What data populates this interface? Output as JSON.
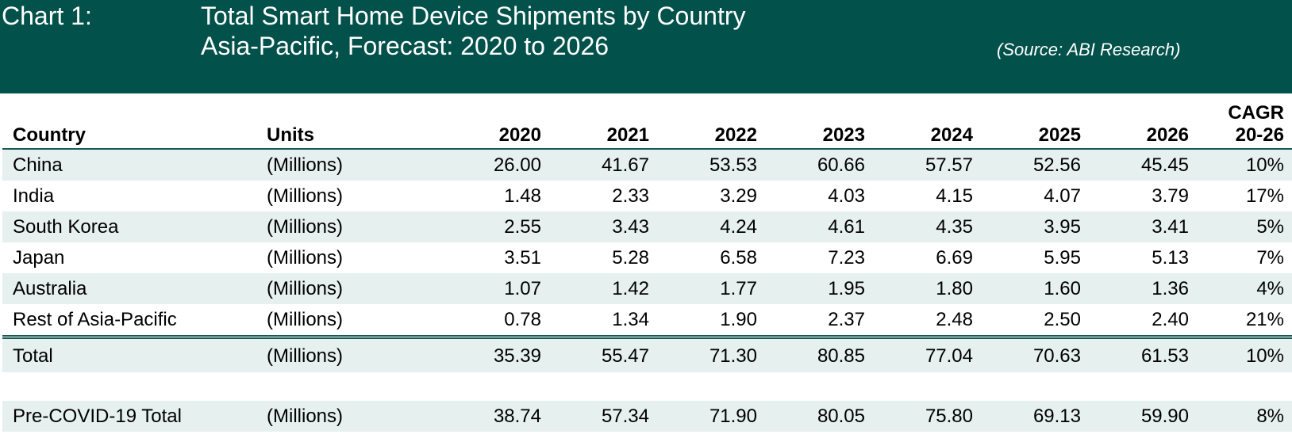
{
  "header": {
    "chart_label": "Chart 1:",
    "title_line1": "Total Smart Home Device Shipments by Country",
    "title_line2": "Asia-Pacific, Forecast: 2020 to 2026",
    "source": "(Source: ABI Research)"
  },
  "colors": {
    "banner": "#02514b",
    "row_shade": "#e6f0ee",
    "rule": "#165a52"
  },
  "table": {
    "columns": [
      "Country",
      "Units",
      "2020",
      "2021",
      "2022",
      "2023",
      "2024",
      "2025",
      "2026",
      "CAGR",
      "20-26"
    ],
    "rows": [
      {
        "country": "China",
        "units": "(Millions)",
        "values": [
          "26.00",
          "41.67",
          "53.53",
          "60.66",
          "57.57",
          "52.56",
          "45.45"
        ],
        "cagr": "10%"
      },
      {
        "country": "India",
        "units": "(Millions)",
        "values": [
          "1.48",
          "2.33",
          "3.29",
          "4.03",
          "4.15",
          "4.07",
          "3.79"
        ],
        "cagr": "17%"
      },
      {
        "country": "South Korea",
        "units": "(Millions)",
        "values": [
          "2.55",
          "3.43",
          "4.24",
          "4.61",
          "4.35",
          "3.95",
          "3.41"
        ],
        "cagr": "5%"
      },
      {
        "country": "Japan",
        "units": "(Millions)",
        "values": [
          "3.51",
          "5.28",
          "6.58",
          "7.23",
          "6.69",
          "5.95",
          "5.13"
        ],
        "cagr": "7%"
      },
      {
        "country": "Australia",
        "units": "(Millions)",
        "values": [
          "1.07",
          "1.42",
          "1.77",
          "1.95",
          "1.80",
          "1.60",
          "1.36"
        ],
        "cagr": "4%"
      },
      {
        "country": "Rest of Asia-Pacific",
        "units": "(Millions)",
        "values": [
          "0.78",
          "1.34",
          "1.90",
          "2.37",
          "2.48",
          "2.50",
          "2.40"
        ],
        "cagr": "21%"
      }
    ],
    "total": {
      "country": "Total",
      "units": "(Millions)",
      "values": [
        "35.39",
        "55.47",
        "71.30",
        "80.85",
        "77.04",
        "70.63",
        "61.53"
      ],
      "cagr": "10%"
    },
    "pre_covid": {
      "country": "Pre-COVID-19 Total",
      "units": "(Millions)",
      "values": [
        "38.74",
        "57.34",
        "71.90",
        "80.05",
        "75.80",
        "69.13",
        "59.90"
      ],
      "cagr": "8%"
    }
  },
  "chart_data": {
    "type": "table",
    "title": "Total Smart Home Device Shipments by Country — Asia-Pacific, Forecast: 2020 to 2026",
    "source": "(Source: ABI Research)",
    "units": "Millions",
    "x": [
      2020,
      2021,
      2022,
      2023,
      2024,
      2025,
      2026
    ],
    "series": [
      {
        "name": "China",
        "values": [
          26.0,
          41.67,
          53.53,
          60.66,
          57.57,
          52.56,
          45.45
        ],
        "cagr_20_26": "10%"
      },
      {
        "name": "India",
        "values": [
          1.48,
          2.33,
          3.29,
          4.03,
          4.15,
          4.07,
          3.79
        ],
        "cagr_20_26": "17%"
      },
      {
        "name": "South Korea",
        "values": [
          2.55,
          3.43,
          4.24,
          4.61,
          4.35,
          3.95,
          3.41
        ],
        "cagr_20_26": "5%"
      },
      {
        "name": "Japan",
        "values": [
          3.51,
          5.28,
          6.58,
          7.23,
          6.69,
          5.95,
          5.13
        ],
        "cagr_20_26": "7%"
      },
      {
        "name": "Australia",
        "values": [
          1.07,
          1.42,
          1.77,
          1.95,
          1.8,
          1.6,
          1.36
        ],
        "cagr_20_26": "4%"
      },
      {
        "name": "Rest of Asia-Pacific",
        "values": [
          0.78,
          1.34,
          1.9,
          2.37,
          2.48,
          2.5,
          2.4
        ],
        "cagr_20_26": "21%"
      },
      {
        "name": "Total",
        "values": [
          35.39,
          55.47,
          71.3,
          80.85,
          77.04,
          70.63,
          61.53
        ],
        "cagr_20_26": "10%"
      },
      {
        "name": "Pre-COVID-19 Total",
        "values": [
          38.74,
          57.34,
          71.9,
          80.05,
          75.8,
          69.13,
          59.9
        ],
        "cagr_20_26": "8%"
      }
    ]
  }
}
